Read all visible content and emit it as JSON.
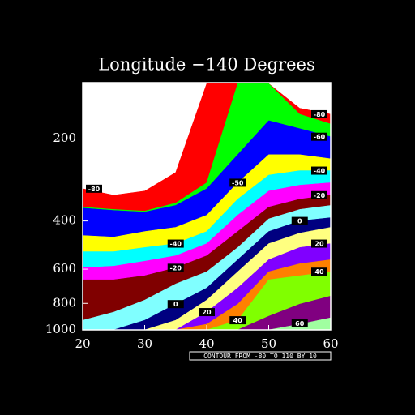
{
  "chart_data": {
    "type": "contour",
    "title": "Longitude −140 Degrees",
    "info_label": "CONTOUR FROM -80 TO 110 BY 10",
    "x": [
      20,
      25,
      30,
      35,
      40,
      45,
      50,
      55,
      60
    ],
    "xlim": [
      20,
      60
    ],
    "xticks": [
      20,
      30,
      40,
      50,
      60
    ],
    "ylim": [
      1000,
      125
    ],
    "yticks": [
      200,
      400,
      600,
      800,
      1000
    ],
    "log_y": true,
    "band_colors": [
      "#ffffff",
      "#ff0000",
      "#00ff00",
      "#0000ff",
      "#ffff00",
      "#00ffff",
      "#ff00ff",
      "#800000",
      "#80ffff",
      "#000080",
      "#ffff80",
      "#8000ff",
      "#ff8000",
      "#80ff00",
      "#800080",
      "#a0ffa0"
    ],
    "contours": [
      {
        "level": -80,
        "values": [
          305,
          322,
          311,
          266,
          126,
          126,
          126,
          155,
          163
        ]
      },
      {
        "level": -70,
        "values": [
          356,
          363,
          368,
          344,
          290,
          126,
          126,
          163,
          177
        ]
      },
      {
        "level": -60,
        "values": [
          359,
          366,
          371,
          351,
          305,
          229,
          172,
          184,
          197
        ]
      },
      {
        "level": -50,
        "values": [
          452,
          458,
          437,
          422,
          381,
          290,
          229,
          229,
          237
        ]
      },
      {
        "level": -40,
        "values": [
          518,
          518,
          500,
          484,
          437,
          333,
          272,
          262,
          262
        ]
      },
      {
        "level": -30,
        "values": [
          593,
          585,
          561,
          536,
          484,
          381,
          311,
          296,
          290
        ]
      },
      {
        "level": -20,
        "values": [
          656,
          656,
          634,
          593,
          536,
          437,
          356,
          333,
          322
        ]
      },
      {
        "level": -10,
        "values": [
          922,
          861,
          778,
          679,
          613,
          500,
          393,
          363,
          351
        ]
      },
      {
        "level": 0,
        "values": [
          1000,
          1000,
          922,
          805,
          703,
          554,
          437,
          400,
          389
        ]
      },
      {
        "level": 10,
        "values": [
          1000,
          1000,
          1000,
          922,
          778,
          613,
          484,
          443,
          422
        ]
      },
      {
        "level": 20,
        "values": [
          1000,
          1000,
          1000,
          1000,
          861,
          703,
          554,
          500,
          484
        ]
      },
      {
        "level": 30,
        "values": [
          1000,
          1000,
          1000,
          1000,
          953,
          805,
          613,
          573,
          554
        ]
      },
      {
        "level": 40,
        "values": [
          1000,
          1000,
          1000,
          1000,
          1000,
          922,
          656,
          634,
          613
        ]
      },
      {
        "level": 50,
        "values": [
          1000,
          1000,
          1000,
          1000,
          1000,
          1000,
          891,
          805,
          752
        ]
      },
      {
        "level": 60,
        "values": [
          1000,
          1000,
          1000,
          1000,
          1000,
          1000,
          1000,
          953,
          903
        ]
      }
    ]
  }
}
